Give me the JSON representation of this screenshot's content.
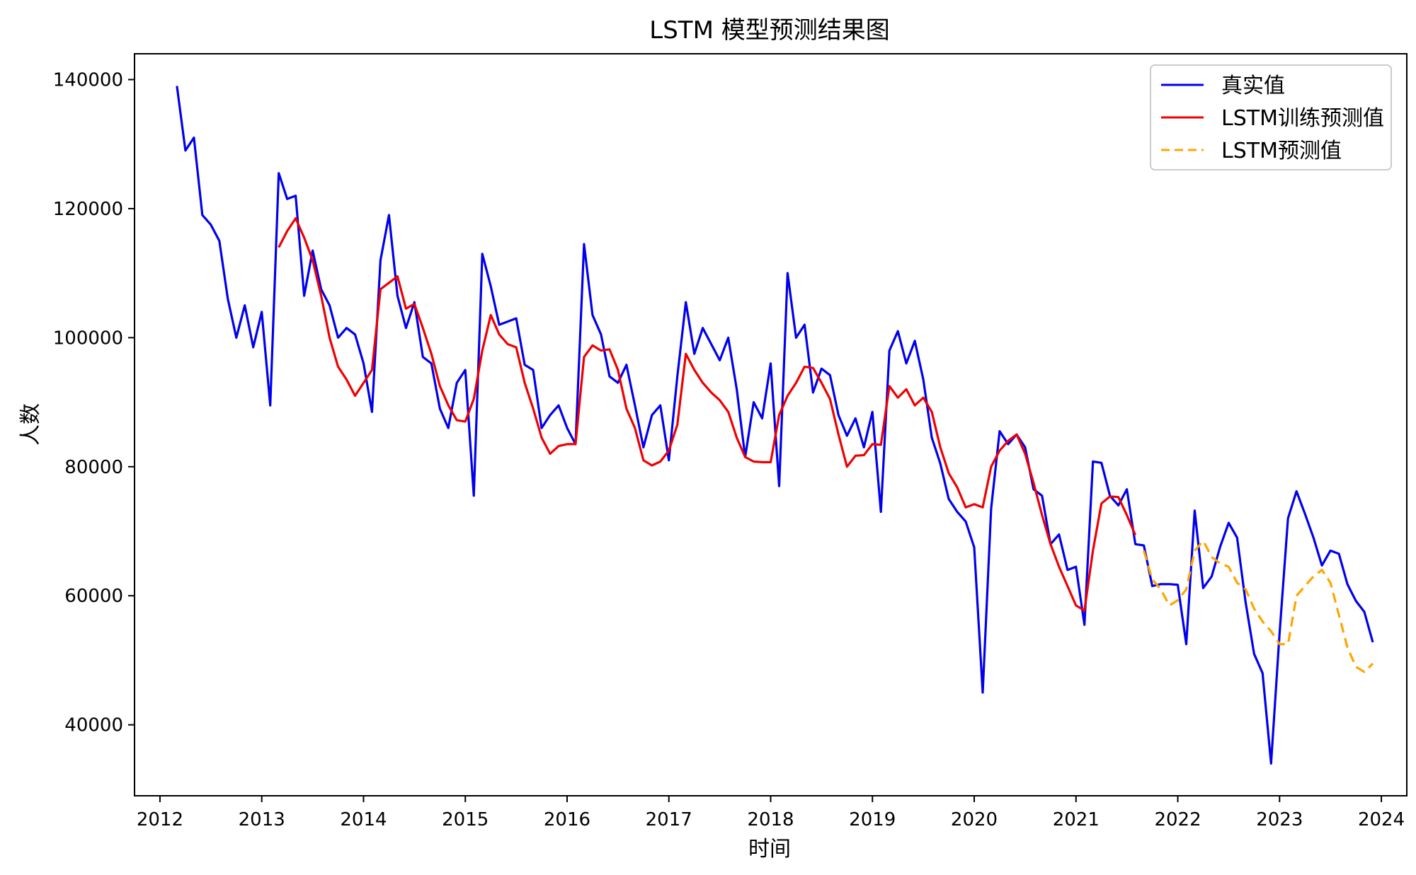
{
  "chart_data": {
    "type": "line",
    "title": "LSTM 模型预测结果图",
    "xlabel": "时间",
    "ylabel": "人数",
    "xlim": [
      2011.75,
      2024.25
    ],
    "ylim": [
      29000,
      144000
    ],
    "xticks": [
      2012,
      2013,
      2014,
      2015,
      2016,
      2017,
      2018,
      2019,
      2020,
      2021,
      2022,
      2023,
      2024
    ],
    "xtick_labels": [
      "2012",
      "2013",
      "2014",
      "2015",
      "2016",
      "2017",
      "2018",
      "2019",
      "2020",
      "2021",
      "2022",
      "2023",
      "2024"
    ],
    "yticks": [
      40000,
      60000,
      80000,
      100000,
      120000,
      140000
    ],
    "ytick_labels": [
      "40000",
      "60000",
      "80000",
      "100000",
      "120000",
      "140000"
    ],
    "legend_position": "top-right",
    "series": [
      {
        "name": "真实值",
        "color": "#0000ee",
        "style": "solid",
        "x_start": 2012.1667,
        "x_step": 0.08333,
        "values": [
          139000,
          129000,
          131000,
          119000,
          117500,
          115000,
          106000,
          100000,
          105000,
          98500,
          104000,
          89500,
          125500,
          121500,
          122000,
          106500,
          113500,
          107500,
          105000,
          100000,
          101500,
          100500,
          96000,
          88500,
          112000,
          119000,
          106500,
          101500,
          105500,
          97000,
          96000,
          89000,
          86000,
          93000,
          95000,
          75500,
          113000,
          108000,
          102000,
          102500,
          103000,
          95800,
          95000,
          86000,
          88000,
          89500,
          86000,
          83500,
          114500,
          103500,
          100500,
          94000,
          93000,
          95800,
          89500,
          83000,
          88000,
          89500,
          81000,
          94000,
          105500,
          97500,
          101500,
          99000,
          96500,
          100000,
          92000,
          81500,
          90000,
          87500,
          96000,
          77000,
          110000,
          100000,
          102000,
          91500,
          95200,
          94200,
          88000,
          84800,
          87500,
          83000,
          88500,
          73000,
          98000,
          101000,
          96000,
          99500,
          93500,
          84500,
          80500,
          75000,
          73000,
          71500,
          67500,
          45000,
          73500,
          85500,
          83500,
          85000,
          83000,
          76500,
          75500,
          68000,
          69500,
          64000,
          64500,
          55500,
          80800,
          80600,
          75500,
          74000,
          76500,
          68000,
          67800,
          61500,
          61800,
          61800,
          61700,
          52500,
          73200,
          61200,
          63000,
          67600,
          71300,
          69000,
          59000,
          51000,
          48000,
          34000,
          54000,
          72000,
          76200,
          72700,
          69000,
          64700,
          67000,
          66500,
          61800,
          59200,
          57500,
          52800
        ]
      },
      {
        "name": "LSTM训练预测值",
        "color": "#ee0000",
        "style": "solid",
        "x_start": 2013.1667,
        "x_step": 0.08333,
        "values": [
          114000,
          116500,
          118500,
          115500,
          112000,
          106500,
          100000,
          95500,
          93500,
          91000,
          93000,
          95000,
          107500,
          108500,
          109500,
          104500,
          105200,
          101500,
          97500,
          92500,
          89500,
          87200,
          87000,
          90500,
          98000,
          103500,
          100500,
          99000,
          98500,
          93000,
          89000,
          84500,
          82000,
          83200,
          83500,
          83500,
          97000,
          98800,
          98000,
          98200,
          95000,
          89000,
          86000,
          81000,
          80200,
          80800,
          82500,
          86500,
          97500,
          95000,
          93000,
          91500,
          90300,
          88500,
          84500,
          81500,
          80800,
          80700,
          80700,
          88000,
          91000,
          93000,
          95500,
          95300,
          93000,
          90500,
          85000,
          80000,
          81700,
          81800,
          83500,
          83400,
          92500,
          90700,
          92000,
          89500,
          90700,
          88500,
          83000,
          79000,
          76800,
          73700,
          74200,
          73700,
          80000,
          82500,
          84000,
          85000,
          82000,
          77500,
          72500,
          68000,
          64500,
          61500,
          58500,
          57700,
          67000,
          74300,
          75400,
          75300,
          72500,
          69400
        ]
      },
      {
        "name": "LSTM预测值",
        "color": "#ffa500",
        "style": "dashed",
        "x_start": 2021.6667,
        "x_step": 0.08333,
        "values": [
          67000,
          62500,
          61000,
          58500,
          59300,
          61000,
          67000,
          68500,
          66000,
          65000,
          64500,
          62000,
          61000,
          58000,
          56000,
          54500,
          52500,
          52500,
          60000,
          61500,
          63000,
          64000,
          62000,
          57000,
          52000,
          49000,
          48200,
          49500
        ]
      }
    ]
  }
}
